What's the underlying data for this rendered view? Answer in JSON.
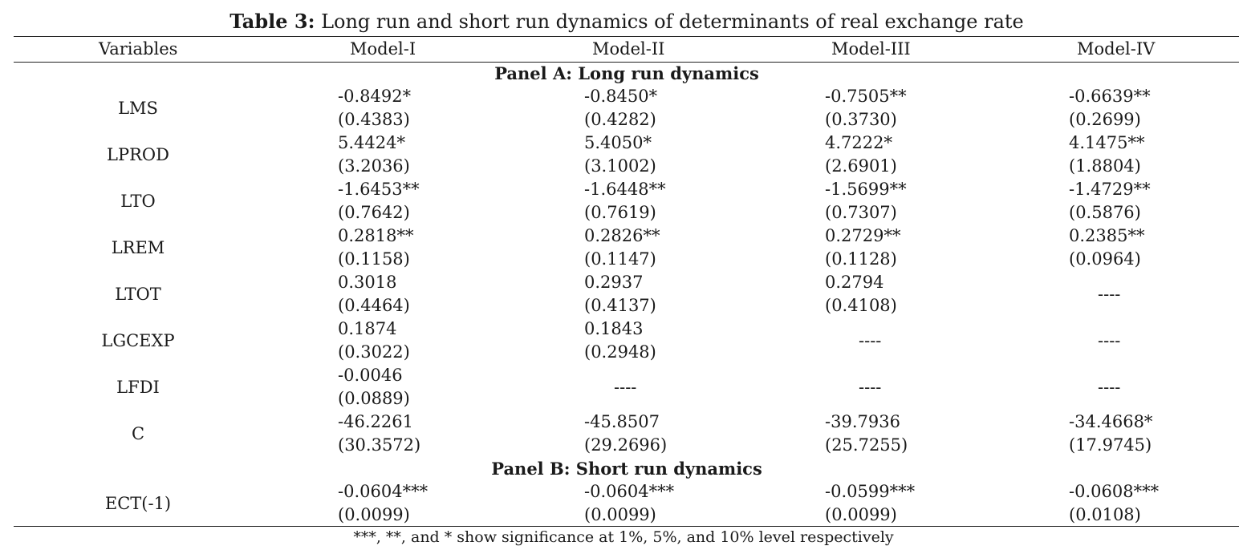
{
  "title": {
    "label": "Table 3:",
    "text": " Long run and short run dynamics of determinants of real exchange rate"
  },
  "header": {
    "variables": "Variables",
    "models": [
      "Model-I",
      "Model-II",
      "Model-III",
      "Model-IV"
    ]
  },
  "panel_a": {
    "title": "Panel A: Long run dynamics",
    "rows": [
      {
        "name": "LMS",
        "cells": [
          {
            "coef": "-0.8492*",
            "se": "(0.4383)"
          },
          {
            "coef": "-0.8450*",
            "se": "(0.4282)"
          },
          {
            "coef": "-0.7505**",
            "se": "(0.3730)"
          },
          {
            "coef": "-0.6639**",
            "se": "(0.2699)"
          }
        ]
      },
      {
        "name": "LPROD",
        "cells": [
          {
            "coef": "5.4424*",
            "se": "(3.2036)"
          },
          {
            "coef": "5.4050*",
            "se": "(3.1002)"
          },
          {
            "coef": "4.7222*",
            "se": "(2.6901)"
          },
          {
            "coef": "4.1475**",
            "se": "(1.8804)"
          }
        ]
      },
      {
        "name": "LTO",
        "cells": [
          {
            "coef": "-1.6453**",
            "se": "(0.7642)"
          },
          {
            "coef": "-1.6448**",
            "se": "(0.7619)"
          },
          {
            "coef": "-1.5699**",
            "se": "(0.7307)"
          },
          {
            "coef": "-1.4729**",
            "se": "(0.5876)"
          }
        ]
      },
      {
        "name": "LREM",
        "cells": [
          {
            "coef": "0.2818**",
            "se": "(0.1158)"
          },
          {
            "coef": "0.2826**",
            "se": "(0.1147)"
          },
          {
            "coef": "0.2729**",
            "se": "(0.1128)"
          },
          {
            "coef": "0.2385**",
            "se": "(0.0964)"
          }
        ]
      },
      {
        "name": "LTOT",
        "cells": [
          {
            "coef": "0.3018",
            "se": "(0.4464)"
          },
          {
            "coef": "0.2937",
            "se": "(0.4137)"
          },
          {
            "coef": "0.2794",
            "se": "(0.4108)"
          },
          {
            "dash": "----"
          }
        ]
      },
      {
        "name": "LGCEXP",
        "cells": [
          {
            "coef": "0.1874",
            "se": "(0.3022)"
          },
          {
            "coef": "0.1843",
            "se": "(0.2948)"
          },
          {
            "dash": "----"
          },
          {
            "dash": "----"
          }
        ]
      },
      {
        "name": "LFDI",
        "cells": [
          {
            "coef": "-0.0046",
            "se": "(0.0889)"
          },
          {
            "dash": "----"
          },
          {
            "dash": "----"
          },
          {
            "dash": "----"
          }
        ]
      },
      {
        "name": "C",
        "cells": [
          {
            "coef": "-46.2261",
            "se": "(30.3572)"
          },
          {
            "coef": "-45.8507",
            "se": "(29.2696)"
          },
          {
            "coef": "-39.7936",
            "se": "(25.7255)"
          },
          {
            "coef": "-34.4668*",
            "se": "(17.9745)"
          }
        ]
      }
    ]
  },
  "panel_b": {
    "title": "Panel B: Short run dynamics",
    "rows": [
      {
        "name": "ECT(-1)",
        "cells": [
          {
            "coef": "-0.0604***",
            "se": "(0.0099)"
          },
          {
            "coef": "-0.0604***",
            "se": "(0.0099)"
          },
          {
            "coef": "-0.0599***",
            "se": "(0.0099)"
          },
          {
            "coef": "-0.0608***",
            "se": "(0.0108)"
          }
        ]
      }
    ]
  },
  "note": "***, **, and * show significance at 1%, 5%, and 10% level respectively"
}
